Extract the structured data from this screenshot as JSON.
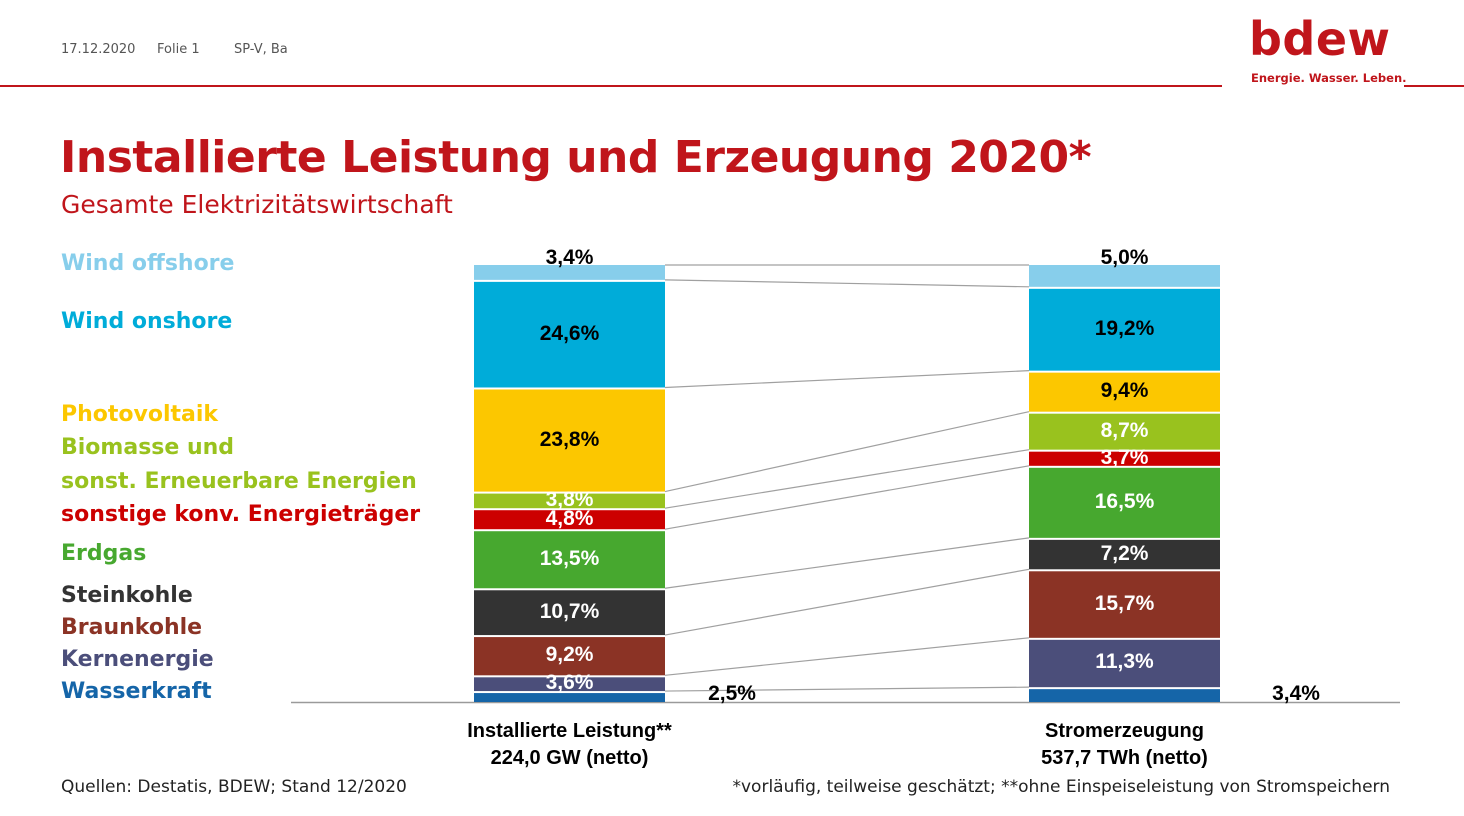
{
  "header": {
    "date": "17.12.2020",
    "slide": "Folie 1",
    "author": "SP-V, Ba",
    "logo_word": "bdew",
    "logo_tagline": "Energie. Wasser. Leben."
  },
  "colors": {
    "accent": "#c0151b"
  },
  "footer": {
    "source": "Quellen: Destatis, BDEW; Stand 12/2020",
    "footnote": "*vorläufig, teilweise geschätzt; **ohne Einspeiseleistung von Stromspeichern"
  },
  "chart_data": {
    "type": "bar",
    "stacked": true,
    "title": "Installierte Leistung und Erzeugung 2020*",
    "subtitle": "Gesamte Elektrizitätswirtschaft",
    "categories": [
      {
        "label": "Installierte Leistung**",
        "sublabel": "224,0 GW (netto)"
      },
      {
        "label": "Stromerzeugung",
        "sublabel": "537,7 TWh (netto)"
      }
    ],
    "series": [
      {
        "name": "Wasserkraft",
        "color": "#1565a8",
        "values": [
          2.5,
          3.4
        ],
        "labels": [
          "2,5%",
          "3,4%"
        ],
        "label_color": "#000000"
      },
      {
        "name": "Kernenergie",
        "color": "#4b4e7a",
        "values": [
          3.6,
          11.3
        ],
        "labels": [
          "3,6%",
          "11,3%"
        ],
        "label_color": "#ffffff"
      },
      {
        "name": "Braunkohle",
        "color": "#8b3325",
        "values": [
          9.2,
          15.7
        ],
        "labels": [
          "9,2%",
          "15,7%"
        ],
        "label_color": "#ffffff"
      },
      {
        "name": "Steinkohle",
        "color": "#333333",
        "values": [
          10.7,
          7.2
        ],
        "labels": [
          "10,7%",
          "7,2%"
        ],
        "label_color": "#ffffff"
      },
      {
        "name": "Erdgas",
        "color": "#47a82f",
        "values": [
          13.5,
          16.5
        ],
        "labels": [
          "13,5%",
          "16,5%"
        ],
        "label_color": "#ffffff"
      },
      {
        "name": "sonstige konv. Energieträger",
        "color": "#cc0000",
        "values": [
          4.8,
          3.7
        ],
        "labels": [
          "4,8%",
          "3,7%"
        ],
        "label_color": "#ffffff"
      },
      {
        "name": "Biomasse und sonst. Erneuerbare Energien",
        "legend_lines": [
          "Biomasse und",
          "sonst. Erneuerbare Energien"
        ],
        "color": "#99c21e",
        "values": [
          3.8,
          8.7
        ],
        "labels": [
          "3,8%",
          "8,7%"
        ],
        "label_color": "#ffffff"
      },
      {
        "name": "Photovoltaik",
        "color": "#fcc700",
        "values": [
          23.8,
          9.4
        ],
        "labels": [
          "23,8%",
          "9,4%"
        ],
        "label_color": "#000000"
      },
      {
        "name": "Wind onshore",
        "color": "#00acd9",
        "values": [
          24.6,
          19.2
        ],
        "labels": [
          "24,6%",
          "19,2%"
        ],
        "label_color": "#000000"
      },
      {
        "name": "Wind offshore",
        "color": "#87ceeb",
        "values": [
          3.4,
          5.0
        ],
        "labels": [
          "3,4%",
          "5,0%"
        ],
        "label_color": "#000000"
      }
    ],
    "ylim": [
      0,
      100
    ],
    "legend": "left"
  }
}
